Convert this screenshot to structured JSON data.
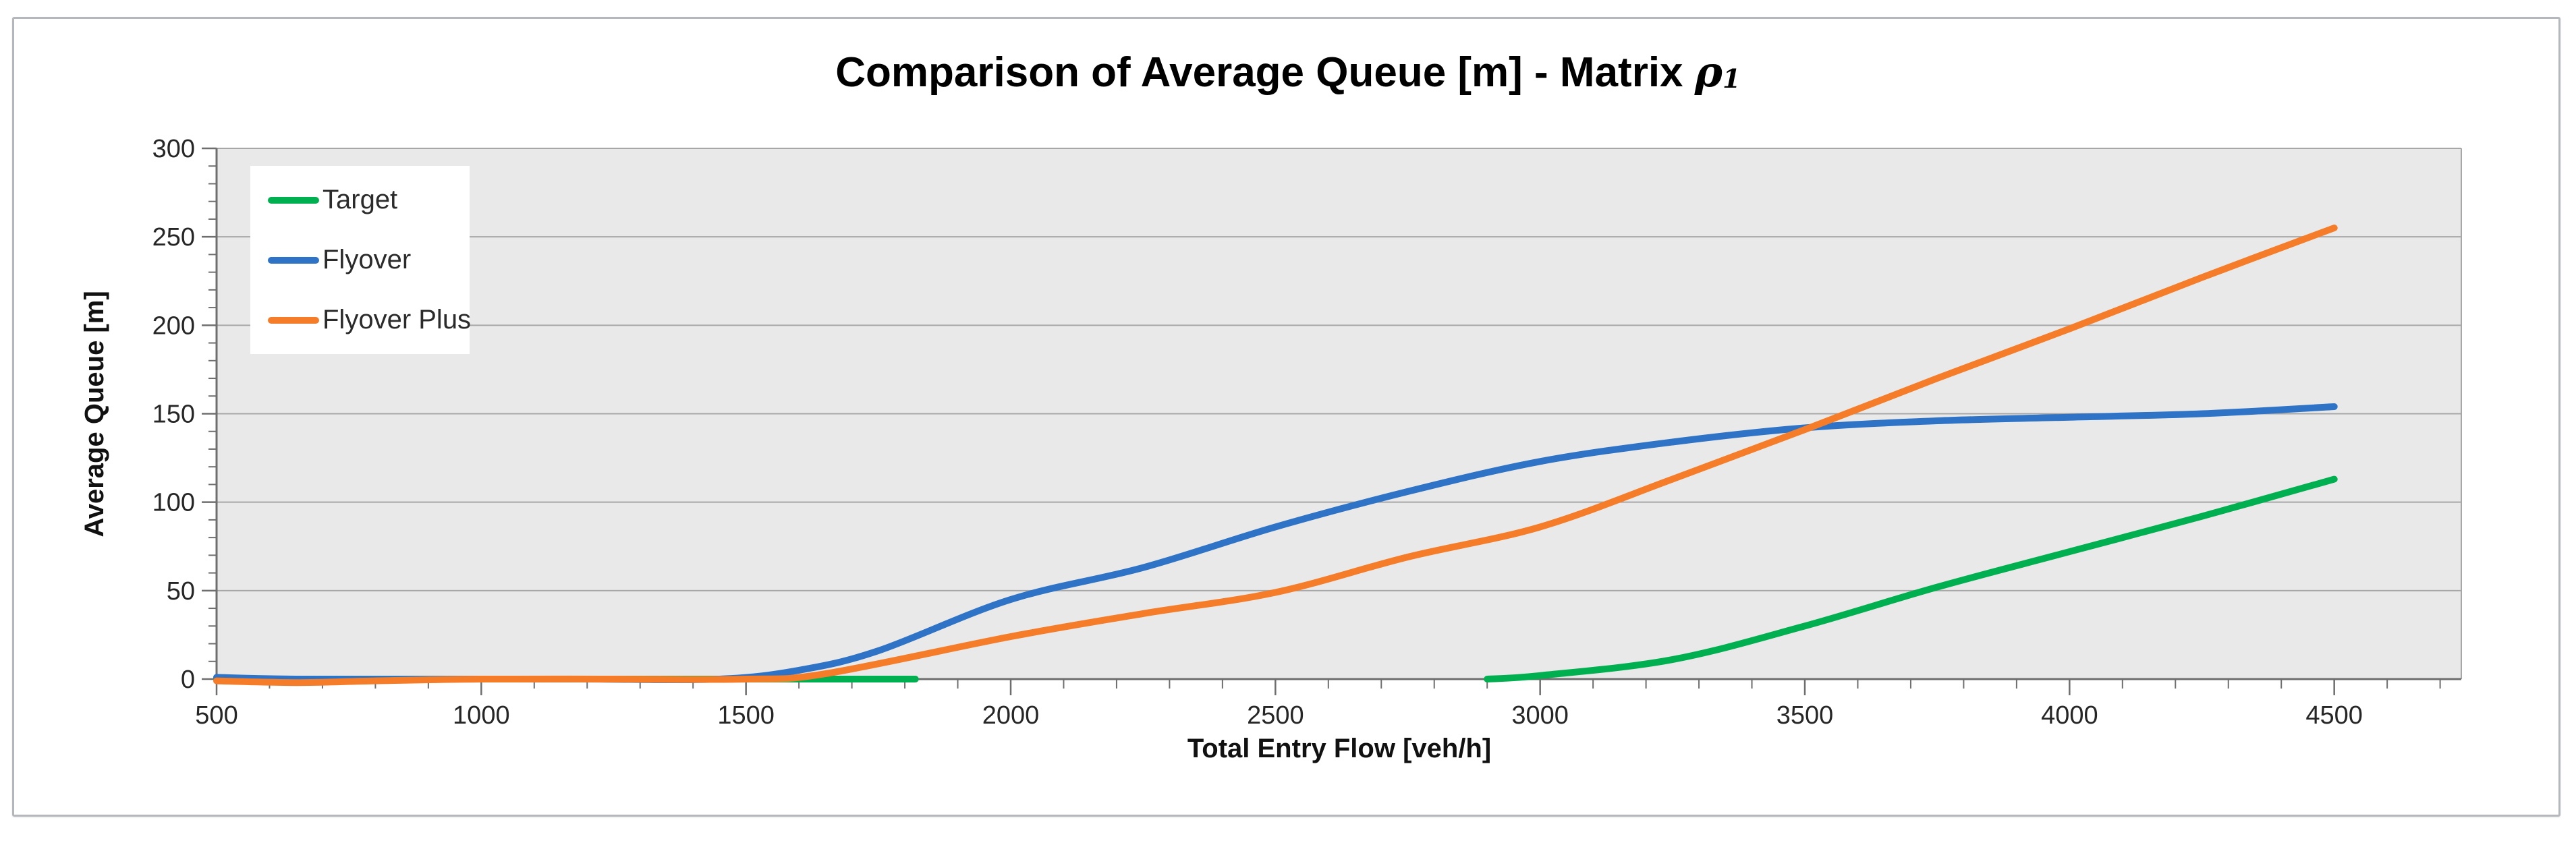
{
  "figure": {
    "title": {
      "text_before_symbol": "Comparison of Average Queue [m] - Matrix ",
      "symbol": "ρ",
      "symbol_subscript": "1"
    },
    "colors": {
      "page_background": "#ffffff",
      "frame_border": "#b4b7bb",
      "plot_background": "#e9e9e9",
      "gridline": "#a7a7a7",
      "axis_line": "#6e6e6e",
      "tick_label": "#262626",
      "title": "#000000"
    }
  },
  "chart_data": {
    "type": "line",
    "title": "Comparison of Average Queue [m] - Matrix ρ1",
    "xlabel": "Total Entry Flow [veh/h]",
    "ylabel": "Average Queue [m]",
    "xlim": [
      500,
      4740
    ],
    "ylim": [
      0,
      300
    ],
    "x_major_ticks": [
      500,
      1000,
      1500,
      2000,
      2500,
      3000,
      3500,
      4000,
      4500
    ],
    "x_minor_step": 100,
    "x_minor_max": 4700,
    "y_major_ticks": [
      0,
      50,
      100,
      150,
      200,
      250,
      300
    ],
    "y_minor_step": 10,
    "grid": "horizontal-only",
    "legend_position": "top-left",
    "series": [
      {
        "name": "Target",
        "color": "#00B050",
        "segments": [
          [
            [
              500,
              0
            ],
            [
              1000,
              0
            ],
            [
              1400,
              0
            ],
            [
              1820,
              0
            ]
          ],
          [
            [
              2900,
              0
            ],
            [
              3000,
              2
            ],
            [
              3250,
              11
            ],
            [
              3500,
              30
            ],
            [
              3750,
              52
            ],
            [
              4000,
              72
            ],
            [
              4250,
              92
            ],
            [
              4500,
              113
            ]
          ]
        ]
      },
      {
        "name": "Flyover",
        "color": "#2E73C5",
        "segments": [
          [
            [
              500,
              1
            ],
            [
              650,
              0
            ],
            [
              1000,
              0
            ],
            [
              1200,
              0
            ],
            [
              1450,
              0
            ],
            [
              1600,
              5
            ],
            [
              1750,
              16
            ],
            [
              2000,
              45
            ],
            [
              2250,
              63
            ],
            [
              2500,
              86
            ],
            [
              2750,
              106
            ],
            [
              3000,
              123
            ],
            [
              3250,
              134
            ],
            [
              3500,
              142
            ],
            [
              3750,
              146
            ],
            [
              4000,
              148
            ],
            [
              4250,
              150
            ],
            [
              4500,
              154
            ]
          ]
        ]
      },
      {
        "name": "Flyover Plus",
        "color": "#F57C28",
        "segments": [
          [
            [
              500,
              -1
            ],
            [
              650,
              -2
            ],
            [
              800,
              -1
            ],
            [
              1000,
              0
            ],
            [
              1250,
              0
            ],
            [
              1500,
              0
            ],
            [
              1650,
              3
            ],
            [
              2000,
              24
            ],
            [
              2250,
              37
            ],
            [
              2500,
              49
            ],
            [
              2750,
              69
            ],
            [
              3000,
              86
            ],
            [
              3250,
              113
            ],
            [
              3500,
              141
            ],
            [
              3750,
              170
            ],
            [
              4000,
              198
            ],
            [
              4250,
              227
            ],
            [
              4500,
              255
            ]
          ]
        ]
      }
    ]
  }
}
